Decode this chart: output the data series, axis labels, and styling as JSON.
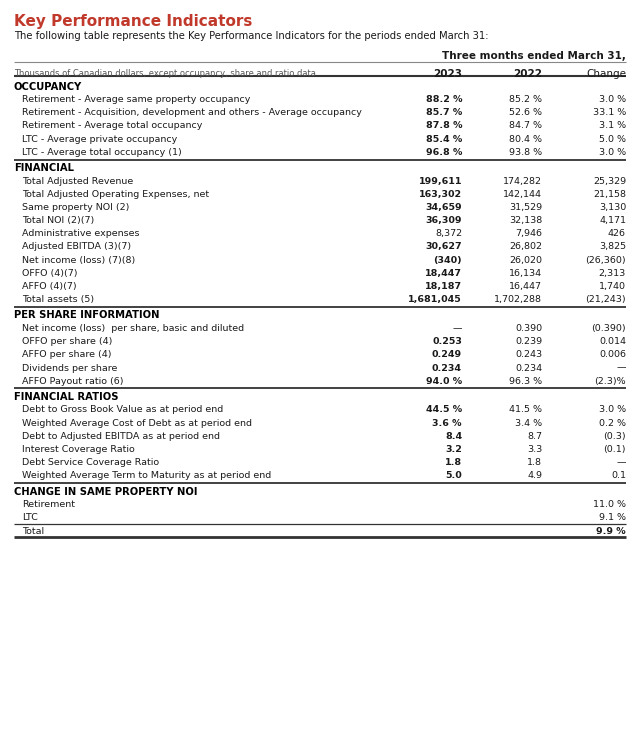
{
  "title": "Key Performance Indicators",
  "subtitle": "The following table represents the Key Performance Indicators for the periods ended March 31:",
  "header_right": "Three months ended March 31,",
  "col_header_left": "Thousands of Canadian dollars, except occupancy, share and ratio data",
  "sections": [
    {
      "name": "OCCUPANCY",
      "rows": [
        {
          "label": "Retirement - Average same property occupancy",
          "v2023": "88.2 %",
          "v2022": "85.2 %",
          "change": "3.0 %",
          "bold2023": true
        },
        {
          "label": "Retirement - Acquisition, development and others - Average occupancy",
          "v2023": "85.7 %",
          "v2022": "52.6 %",
          "change": "33.1 %",
          "bold2023": true
        },
        {
          "label": "Retirement - Average total occupancy",
          "v2023": "87.8 %",
          "v2022": "84.7 %",
          "change": "3.1 %",
          "bold2023": true
        },
        {
          "label": "LTC - Average private occupancy",
          "v2023": "85.4 %",
          "v2022": "80.4 %",
          "change": "5.0 %",
          "bold2023": true
        },
        {
          "label": "LTC - Average total occupancy (1)",
          "v2023": "96.8 %",
          "v2022": "93.8 %",
          "change": "3.0 %",
          "bold2023": true
        }
      ]
    },
    {
      "name": "FINANCIAL",
      "rows": [
        {
          "label": "Total Adjusted Revenue",
          "v2023": "199,611",
          "v2022": "174,282",
          "change": "25,329",
          "bold2023": true
        },
        {
          "label": "Total Adjusted Operating Expenses, net",
          "v2023": "163,302",
          "v2022": "142,144",
          "change": "21,158",
          "bold2023": true
        },
        {
          "label": "Same property NOI (2)",
          "v2023": "34,659",
          "v2022": "31,529",
          "change": "3,130",
          "bold2023": true
        },
        {
          "label": "Total NOI (2)(7)",
          "v2023": "36,309",
          "v2022": "32,138",
          "change": "4,171",
          "bold2023": true
        },
        {
          "label": "Administrative expenses",
          "v2023": "8,372",
          "v2022": "7,946",
          "change": "426",
          "bold2023": false
        },
        {
          "label": "Adjusted EBITDA (3)(7)",
          "v2023": "30,627",
          "v2022": "26,802",
          "change": "3,825",
          "bold2023": true
        },
        {
          "label": "Net income (loss) (7)(8)",
          "v2023": "(340)",
          "v2022": "26,020",
          "change": "(26,360)",
          "bold2023": true
        },
        {
          "label": "OFFO (4)(7)",
          "v2023": "18,447",
          "v2022": "16,134",
          "change": "2,313",
          "bold2023": true
        },
        {
          "label": "AFFO (4)(7)",
          "v2023": "18,187",
          "v2022": "16,447",
          "change": "1,740",
          "bold2023": true
        },
        {
          "label": "Total assets (5)",
          "v2023": "1,681,045",
          "v2022": "1,702,288",
          "change": "(21,243)",
          "bold2023": true
        }
      ]
    },
    {
      "name": "PER SHARE INFORMATION",
      "rows": [
        {
          "label": "Net income (loss)  per share, basic and diluted",
          "v2023": "—",
          "v2022": "0.390",
          "change": "(0.390)",
          "bold2023": false
        },
        {
          "label": "OFFO per share (4)",
          "v2023": "0.253",
          "v2022": "0.239",
          "change": "0.014",
          "bold2023": true
        },
        {
          "label": "AFFO per share (4)",
          "v2023": "0.249",
          "v2022": "0.243",
          "change": "0.006",
          "bold2023": true
        },
        {
          "label": "Dividends per share",
          "v2023": "0.234",
          "v2022": "0.234",
          "change": "—",
          "bold2023": true
        },
        {
          "label": "AFFO Payout ratio (6)",
          "v2023": "94.0 %",
          "v2022": "96.3 %",
          "change": "(2.3)%",
          "bold2023": true
        }
      ]
    },
    {
      "name": "FINANCIAL RATIOS",
      "rows": [
        {
          "label": "Debt to Gross Book Value as at period end",
          "v2023": "44.5 %",
          "v2022": "41.5 %",
          "change": "3.0 %",
          "bold2023": true
        },
        {
          "label": "Weighted Average Cost of Debt as at period end",
          "v2023": "3.6 %",
          "v2022": "3.4 %",
          "change": "0.2 %",
          "bold2023": true
        },
        {
          "label": "Debt to Adjusted EBITDA as at period end",
          "v2023": "8.4",
          "v2022": "8.7",
          "change": "(0.3)",
          "bold2023": true
        },
        {
          "label": "Interest Coverage Ratio",
          "v2023": "3.2",
          "v2022": "3.3",
          "change": "(0.1)",
          "bold2023": true
        },
        {
          "label": "Debt Service Coverage Ratio",
          "v2023": "1.8",
          "v2022": "1.8",
          "change": "—",
          "bold2023": true
        },
        {
          "label": "Weighted Average Term to Maturity as at period end",
          "v2023": "5.0",
          "v2022": "4.9",
          "change": "0.1",
          "bold2023": true
        }
      ]
    },
    {
      "name": "CHANGE IN SAME PROPERTY NOI",
      "rows": [
        {
          "label": "Retirement",
          "v2023": "",
          "v2022": "",
          "change": "11.0 %",
          "bold2023": false,
          "bold_change": false
        },
        {
          "label": "LTC",
          "v2023": "",
          "v2022": "",
          "change": "9.1 %",
          "bold2023": false,
          "bold_change": false
        },
        {
          "label": "Total",
          "v2023": "",
          "v2022": "",
          "change": "9.9 %",
          "bold2023": false,
          "is_total": true,
          "bold_change": true
        }
      ]
    }
  ],
  "title_color": "#C0392B",
  "text_color": "#1a1a1a",
  "gray_text": "#555555",
  "bg_color": "#ffffff",
  "line_color": "#888888",
  "thick_line_color": "#333333"
}
